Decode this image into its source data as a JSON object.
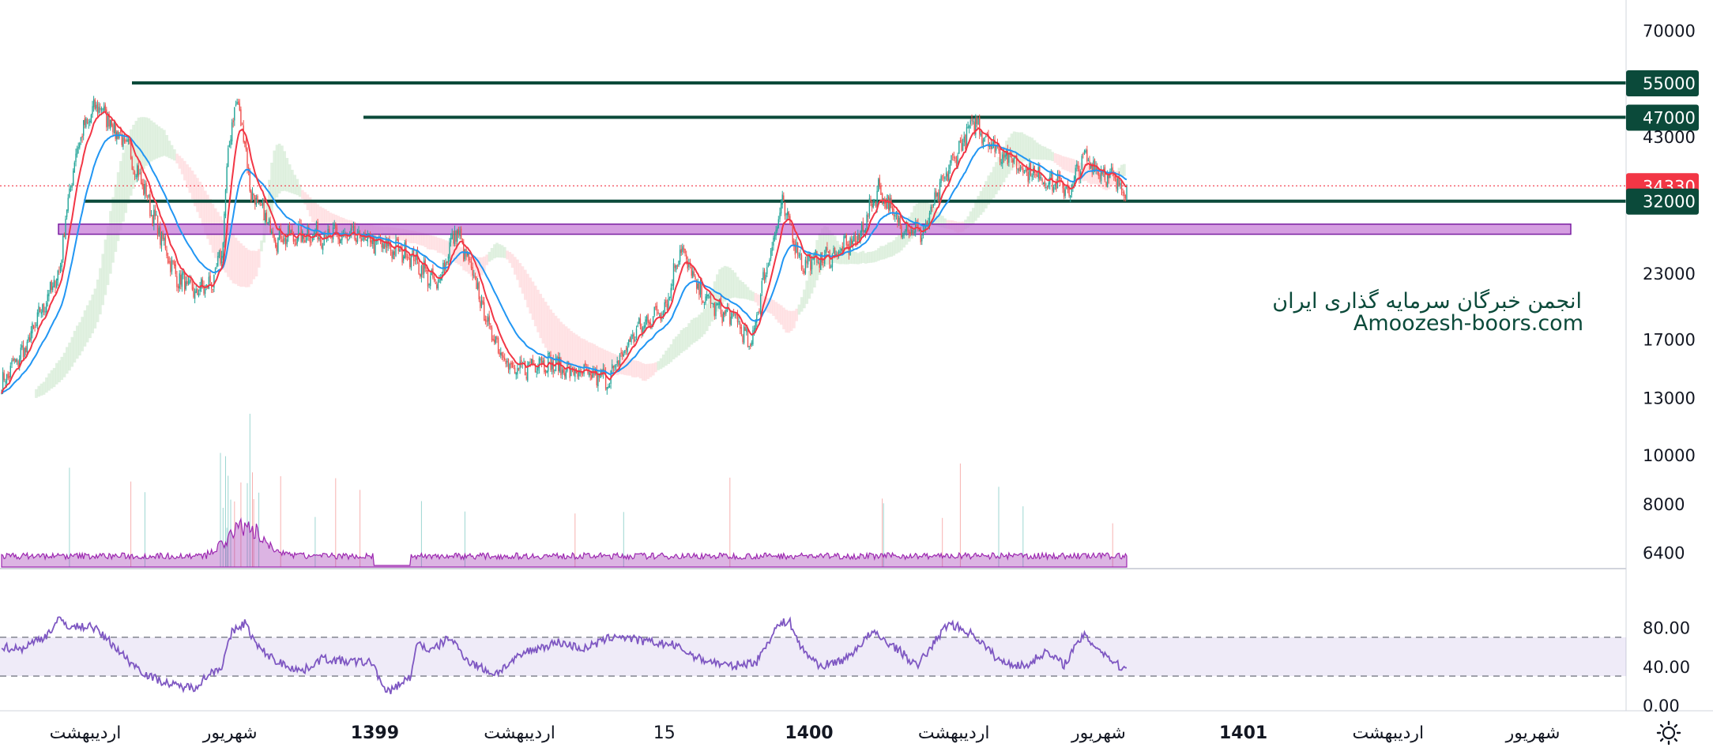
{
  "chart_data": {
    "type": "candlestick",
    "price_axis": {
      "scale": "log",
      "ticks": [
        "70000",
        "55000",
        "47000",
        "43000",
        "34330",
        "32000",
        "23000",
        "17000",
        "13000",
        "10000",
        "8000",
        "6400"
      ],
      "range": [
        6000,
        78000
      ]
    },
    "rsi_axis": {
      "ticks": [
        "80.00",
        "40.00",
        "0.00"
      ],
      "range": [
        0,
        100
      ],
      "band": [
        30,
        70
      ]
    },
    "time_axis": {
      "labels": [
        "اردیبهشت",
        "شهریور",
        "1399",
        "اردیبهشت",
        "15",
        "1400",
        "اردیبهشت",
        "شهریور",
        "1401",
        "اردیبهشت",
        "شهریور"
      ],
      "bold": [
        false,
        false,
        true,
        false,
        false,
        true,
        false,
        false,
        true,
        false,
        false
      ]
    },
    "horizontal_levels": [
      {
        "value": 55000,
        "label": "55000",
        "color": "#0b4a3a"
      },
      {
        "value": 47000,
        "label": "47000",
        "color": "#0b4a3a"
      },
      {
        "value": 32000,
        "label": "32000",
        "color": "#0b4a3a"
      }
    ],
    "current_price": {
      "value": 34330,
      "label": "34330",
      "color": "#f23645"
    },
    "support_zone": {
      "low": 27500,
      "high": 28800,
      "color": "#c77dd7"
    },
    "watermark": {
      "line1": "انجمن خبرگان سرمایه گذاری ایران",
      "line2": "Amoozesh-boors.com"
    },
    "colors": {
      "up": "#26a69a",
      "down": "#ef5350",
      "ema_fast": "#f23645",
      "ema_slow": "#2196f3",
      "cloud_bull": "#c8e6c9",
      "cloud_bear": "#ffcdd2",
      "volume": "#9c27b0",
      "rsi": "#7e57c2"
    },
    "close_anchors": [
      [
        0,
        13800
      ],
      [
        20,
        16500
      ],
      [
        45,
        23000
      ],
      [
        60,
        42000
      ],
      [
        75,
        50000
      ],
      [
        100,
        40000
      ],
      [
        120,
        29000
      ],
      [
        135,
        23000
      ],
      [
        150,
        21000
      ],
      [
        165,
        22000
      ],
      [
        172,
        25000
      ],
      [
        180,
        47000
      ],
      [
        185,
        50000
      ],
      [
        195,
        33000
      ],
      [
        215,
        27000
      ],
      [
        240,
        27500
      ],
      [
        280,
        27000
      ],
      [
        320,
        25000
      ],
      [
        340,
        21500
      ],
      [
        355,
        28000
      ],
      [
        365,
        24000
      ],
      [
        380,
        18000
      ],
      [
        400,
        14500
      ],
      [
        420,
        15500
      ],
      [
        450,
        14500
      ],
      [
        475,
        14200
      ],
      [
        495,
        17500
      ],
      [
        520,
        20000
      ],
      [
        530,
        26000
      ],
      [
        545,
        21000
      ],
      [
        560,
        19500
      ],
      [
        575,
        18500
      ],
      [
        585,
        16200
      ],
      [
        600,
        25000
      ],
      [
        610,
        31500
      ],
      [
        625,
        24000
      ],
      [
        650,
        25000
      ],
      [
        670,
        27000
      ],
      [
        685,
        34000
      ],
      [
        700,
        29000
      ],
      [
        720,
        27500
      ],
      [
        740,
        37000
      ],
      [
        760,
        46000
      ],
      [
        775,
        41000
      ],
      [
        800,
        37000
      ],
      [
        820,
        35000
      ],
      [
        835,
        33500
      ],
      [
        845,
        39000
      ],
      [
        860,
        36500
      ],
      [
        875,
        34330
      ]
    ],
    "rsi_anchors": [
      [
        0,
        60
      ],
      [
        15,
        58
      ],
      [
        35,
        72
      ],
      [
        45,
        88
      ],
      [
        55,
        80
      ],
      [
        70,
        82
      ],
      [
        85,
        65
      ],
      [
        100,
        45
      ],
      [
        115,
        30
      ],
      [
        135,
        20
      ],
      [
        150,
        18
      ],
      [
        165,
        35
      ],
      [
        172,
        40
      ],
      [
        180,
        75
      ],
      [
        190,
        85
      ],
      [
        200,
        60
      ],
      [
        215,
        45
      ],
      [
        235,
        35
      ],
      [
        250,
        48
      ],
      [
        270,
        45
      ],
      [
        290,
        44
      ],
      [
        300,
        12
      ],
      [
        320,
        30
      ],
      [
        325,
        66
      ],
      [
        335,
        55
      ],
      [
        350,
        70
      ],
      [
        365,
        45
      ],
      [
        385,
        32
      ],
      [
        410,
        55
      ],
      [
        435,
        65
      ],
      [
        455,
        58
      ],
      [
        480,
        72
      ],
      [
        500,
        66
      ],
      [
        525,
        62
      ],
      [
        545,
        48
      ],
      [
        570,
        40
      ],
      [
        590,
        45
      ],
      [
        605,
        80
      ],
      [
        615,
        88
      ],
      [
        625,
        58
      ],
      [
        640,
        40
      ],
      [
        660,
        48
      ],
      [
        680,
        75
      ],
      [
        700,
        58
      ],
      [
        715,
        40
      ],
      [
        740,
        85
      ],
      [
        760,
        72
      ],
      [
        780,
        45
      ],
      [
        800,
        40
      ],
      [
        815,
        55
      ],
      [
        830,
        42
      ],
      [
        845,
        72
      ],
      [
        860,
        55
      ],
      [
        875,
        38
      ]
    ]
  }
}
